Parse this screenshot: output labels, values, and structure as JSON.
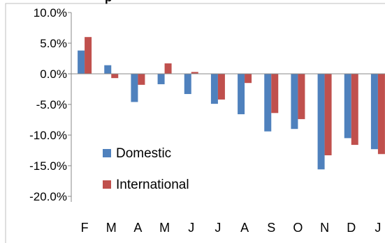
{
  "chart_data": {
    "type": "bar",
    "title": "p",
    "categories": [
      "F",
      "M",
      "A",
      "M",
      "J",
      "J",
      "A",
      "S",
      "O",
      "N",
      "D",
      "J"
    ],
    "series": [
      {
        "name": "Domestic",
        "color": "#4F81BD",
        "values": [
          3.8,
          1.4,
          -4.6,
          -1.7,
          -3.3,
          -4.9,
          -6.6,
          -9.4,
          -9.0,
          -15.6,
          -10.5,
          -12.3
        ]
      },
      {
        "name": "International",
        "color": "#C0504D",
        "values": [
          6.0,
          -0.7,
          -1.8,
          1.7,
          0.3,
          -4.2,
          -1.5,
          -6.4,
          -7.4,
          -13.3,
          -11.6,
          -13.1
        ]
      }
    ],
    "ylim": [
      -20,
      10
    ],
    "yticks": [
      "10.0%",
      "5.0%",
      "0.0%",
      "-5.0%",
      "-10.0%",
      "-15.0%",
      "-20.0%"
    ],
    "ytick_values": [
      10,
      5,
      0,
      -5,
      -10,
      -15,
      -20
    ],
    "xlabel": "",
    "ylabel": "",
    "grid": false,
    "legend_position": "bottom-left"
  }
}
